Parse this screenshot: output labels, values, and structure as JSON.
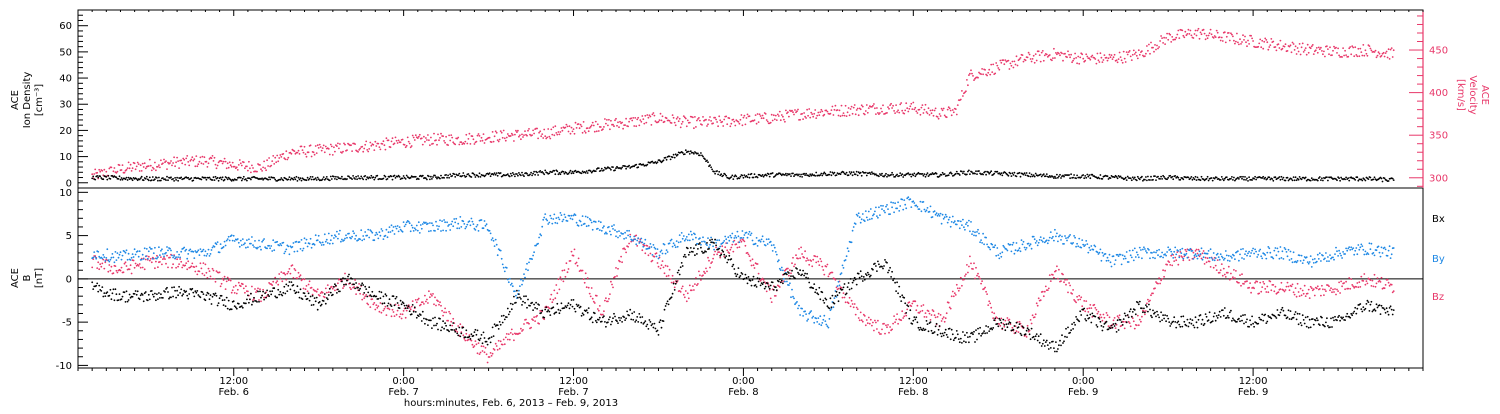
{
  "chart_data": [
    {
      "type": "scatter",
      "panel": "top",
      "left_axis": {
        "label_lines": [
          "ACE",
          "Ion Density",
          "[cm⁻³]"
        ],
        "ylim": [
          -2,
          66
        ],
        "ticks": [
          0,
          10,
          20,
          30,
          40,
          50,
          60
        ],
        "color": "#000000"
      },
      "right_axis": {
        "label_lines": [
          "ACE",
          "Velocity",
          "[km/s]"
        ],
        "ylim": [
          288,
          497
        ],
        "ticks": [
          300,
          350,
          400,
          450
        ],
        "color": "#e8386a"
      },
      "series": [
        {
          "axis": "left",
          "color": "#000000",
          "x": [
            -10,
            -6,
            -2,
            0,
            2,
            4,
            6,
            8,
            10,
            12,
            14,
            16,
            18,
            20,
            22,
            24,
            26,
            28,
            30,
            31,
            32,
            33,
            34,
            35,
            36,
            38,
            40,
            42,
            44,
            46,
            48,
            50,
            52,
            54,
            56,
            58,
            60,
            62,
            64,
            66,
            68,
            70,
            72,
            74,
            76,
            78,
            80,
            82
          ],
          "values": [
            2,
            1.5,
            1.5,
            1.5,
            1.5,
            1.5,
            1.5,
            2,
            2,
            2,
            2,
            3,
            3,
            3,
            4,
            4,
            5,
            6,
            8,
            10,
            12,
            11,
            4,
            2,
            2.5,
            3,
            3,
            3.5,
            3.5,
            3,
            3,
            3,
            4,
            3.5,
            3,
            2.5,
            2.5,
            2,
            1.5,
            2,
            1.5,
            1.5,
            1.5,
            1.5,
            1.5,
            1.5,
            1.5,
            1
          ]
        },
        {
          "axis": "right",
          "color": "#e8386a",
          "x": [
            -10,
            -8,
            -6,
            -4,
            -2,
            0,
            2,
            4,
            6,
            8,
            10,
            12,
            14,
            16,
            18,
            20,
            22,
            24,
            26,
            28,
            30,
            32,
            34,
            36,
            38,
            40,
            42,
            44,
            46,
            48,
            50,
            51,
            52,
            54,
            56,
            58,
            60,
            62,
            64,
            66,
            68,
            70,
            72,
            74,
            76,
            78,
            80,
            82
          ],
          "values": [
            302,
            310,
            315,
            318,
            320,
            315,
            312,
            330,
            332,
            335,
            338,
            342,
            345,
            345,
            348,
            350,
            352,
            358,
            362,
            365,
            370,
            365,
            365,
            368,
            370,
            375,
            378,
            380,
            382,
            382,
            375,
            378,
            420,
            430,
            440,
            445,
            440,
            440,
            445,
            465,
            470,
            465,
            460,
            455,
            450,
            448,
            450,
            445
          ]
        }
      ]
    },
    {
      "type": "scatter",
      "panel": "bottom",
      "left_axis": {
        "label_lines": [
          "ACE",
          "B",
          "[nT]"
        ],
        "ylim": [
          -10.3,
          10.5
        ],
        "ticks": [
          -10,
          -5,
          0,
          5,
          10
        ],
        "color": "#000000"
      },
      "zero_line": 0,
      "legend": [
        "Bx",
        "By",
        "Bz"
      ],
      "series": [
        {
          "name": "Bx",
          "color": "#000000",
          "x": [
            -10,
            -8,
            -6,
            -4,
            -2,
            0,
            2,
            4,
            6,
            8,
            10,
            12,
            14,
            16,
            18,
            20,
            22,
            24,
            26,
            28,
            30,
            32,
            34,
            36,
            38,
            40,
            42,
            44,
            46,
            48,
            50,
            52,
            54,
            56,
            58,
            60,
            62,
            64,
            66,
            68,
            70,
            72,
            74,
            76,
            78,
            80,
            82
          ],
          "values": [
            -1,
            -2,
            -2,
            -1.5,
            -2,
            -3,
            -2,
            -1,
            -3,
            0,
            -2,
            -3,
            -5,
            -6,
            -7,
            -2,
            -4,
            -3,
            -5,
            -4,
            -6,
            3,
            4,
            0,
            -1,
            1,
            -3,
            0,
            2,
            -5,
            -6,
            -7,
            -5,
            -6,
            -8,
            -4,
            -6,
            -3,
            -5,
            -5,
            -4,
            -5,
            -4,
            -5,
            -5,
            -3,
            -4
          ]
        },
        {
          "name": "By",
          "color": "#1e88e5",
          "x": [
            -10,
            -8,
            -6,
            -4,
            -2,
            0,
            2,
            4,
            6,
            8,
            10,
            12,
            14,
            16,
            18,
            20,
            22,
            24,
            26,
            28,
            30,
            32,
            34,
            36,
            38,
            40,
            42,
            44,
            46,
            48,
            50,
            52,
            54,
            56,
            58,
            60,
            62,
            64,
            66,
            68,
            70,
            72,
            74,
            76,
            78,
            80,
            82
          ],
          "values": [
            3,
            2.5,
            3,
            3,
            3,
            4.5,
            4,
            3.5,
            4.5,
            5,
            5,
            6,
            6,
            6.5,
            6,
            -2,
            7,
            7,
            6,
            5,
            3,
            5,
            4,
            5,
            4,
            -4,
            -5,
            7,
            8,
            9,
            7,
            6,
            3,
            4,
            5,
            4,
            2,
            3,
            3,
            3,
            2.5,
            3,
            3,
            2,
            3,
            3.5,
            3
          ]
        },
        {
          "name": "Bz",
          "color": "#e8386a",
          "x": [
            -10,
            -8,
            -6,
            -4,
            -2,
            0,
            2,
            4,
            6,
            8,
            10,
            12,
            14,
            16,
            18,
            20,
            22,
            24,
            26,
            28,
            30,
            32,
            34,
            36,
            38,
            40,
            42,
            44,
            46,
            48,
            50,
            52,
            54,
            56,
            58,
            60,
            62,
            64,
            66,
            68,
            70,
            72,
            74,
            76,
            78,
            80,
            82
          ],
          "values": [
            2,
            1,
            2,
            2,
            1,
            -1,
            -2,
            1,
            -2,
            0,
            -3,
            -4,
            -2,
            -6,
            -9,
            -6,
            -4,
            3,
            -4,
            5,
            2,
            -2,
            3,
            4,
            -2,
            3,
            1,
            -4,
            -6,
            -3,
            -5,
            2,
            -5,
            -6,
            1,
            -3,
            -5,
            -5,
            2,
            3,
            1,
            -1,
            -1,
            -1.5,
            -1,
            0,
            -1
          ]
        }
      ]
    }
  ],
  "time_axis": {
    "xlim": [
      -11,
      84
    ],
    "tick_hours": [
      0,
      24,
      48,
      72
    ],
    "tick_labels": [
      {
        "hour": 0,
        "time": "12:00",
        "date": "Feb. 6"
      },
      {
        "hour": 12,
        "time": "0:00",
        "date": "Feb. 7"
      },
      {
        "hour": 24,
        "time": "12:00",
        "date": "Feb. 7"
      },
      {
        "hour": 36,
        "time": "0:00",
        "date": "Feb. 8"
      },
      {
        "hour": 48,
        "time": "12:00",
        "date": "Feb. 8"
      },
      {
        "hour": 60,
        "time": "0:00",
        "date": "Feb. 9"
      },
      {
        "hour": 72,
        "time": "12:00",
        "date": "Feb. 9"
      }
    ],
    "xlabel": "hours:minutes, Feb.  6, 2013 – Feb.  9, 2013"
  }
}
